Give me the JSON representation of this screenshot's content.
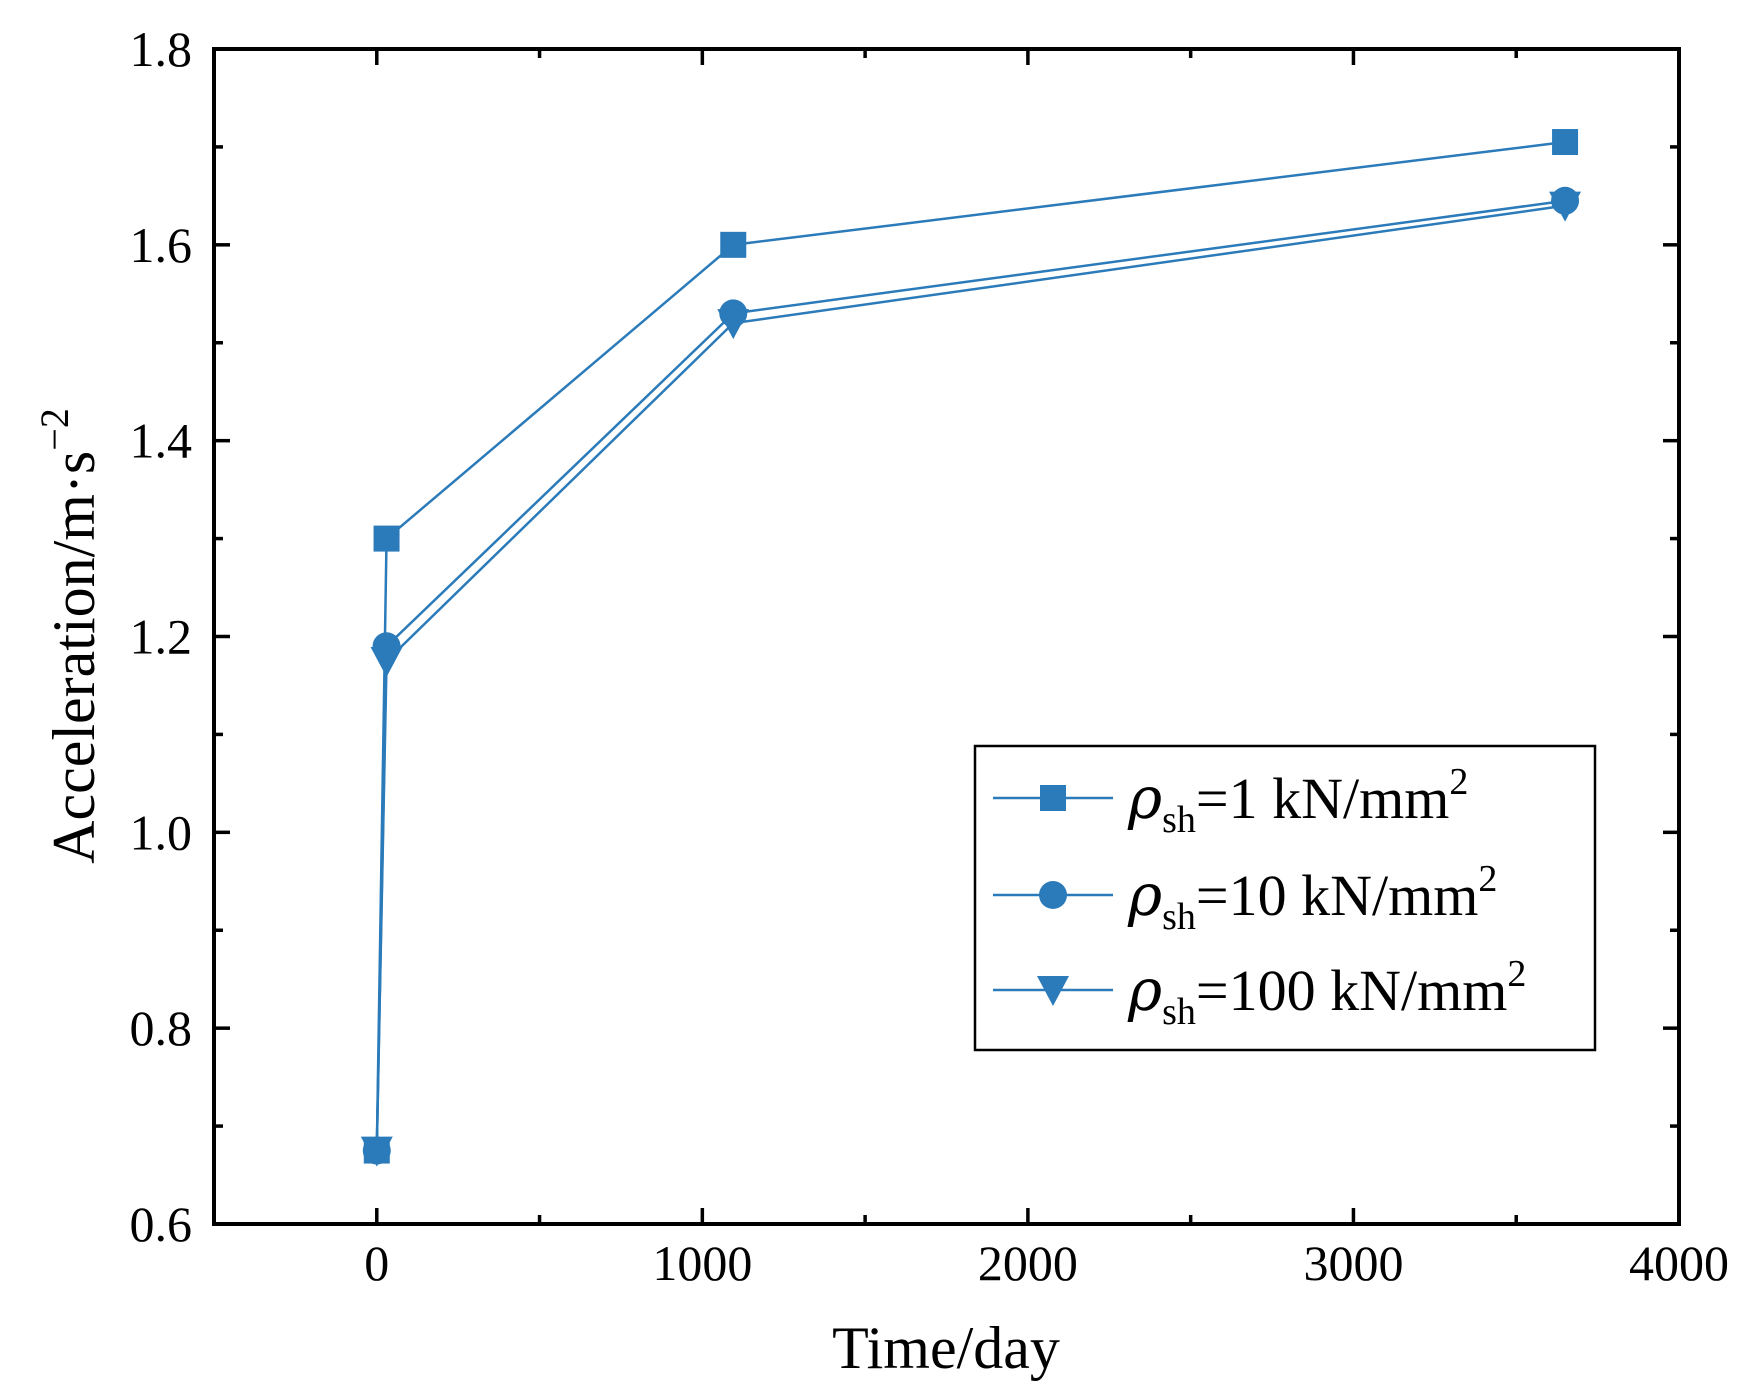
{
  "colors": {
    "series": "#2b7bba",
    "axis": "#000000"
  },
  "chart_data": {
    "type": "line",
    "xlabel": "Time/day",
    "ylabel": {
      "base": "Acceleration/m",
      "dot": "·",
      "unit": "s",
      "exponent": "−2"
    },
    "xlim": [
      -500,
      4000
    ],
    "ylim": [
      0.6,
      1.8
    ],
    "x_ticks": [
      0,
      1000,
      2000,
      3000,
      4000
    ],
    "x_tick_labels": [
      "0",
      "1000",
      "2000",
      "3000",
      "4000"
    ],
    "x_minor_ticks": [
      -500,
      500,
      1500,
      2500,
      3500
    ],
    "y_ticks": [
      0.6,
      0.8,
      1.0,
      1.2,
      1.4,
      1.6,
      1.8
    ],
    "y_tick_labels": [
      "0.6",
      "0.8",
      "1.0",
      "1.2",
      "1.4",
      "1.6",
      "1.8"
    ],
    "y_minor_ticks": [
      0.7,
      0.9,
      1.1,
      1.3,
      1.5,
      1.7
    ],
    "grid": false,
    "legend_position": "lower-right",
    "x": [
      0,
      30,
      1095,
      3650
    ],
    "series": [
      {
        "name": "ρsh=1 kN/mm2",
        "label": {
          "symbol": "ρ",
          "sub": "sh",
          "text": "=1 kN/mm",
          "sup": "2"
        },
        "marker": "square",
        "values": [
          0.675,
          1.3,
          1.6,
          1.705
        ]
      },
      {
        "name": "ρsh=10 kN/mm2",
        "label": {
          "symbol": "ρ",
          "sub": "sh",
          "text": "=10 kN/mm",
          "sup": "2"
        },
        "marker": "circle",
        "values": [
          0.675,
          1.19,
          1.53,
          1.645
        ]
      },
      {
        "name": "ρsh=100 kN/mm2",
        "label": {
          "symbol": "ρ",
          "sub": "sh",
          "text": "=100 kN/mm",
          "sup": "2"
        },
        "marker": "triangle-down",
        "values": [
          0.675,
          1.175,
          1.52,
          1.64
        ]
      }
    ]
  }
}
